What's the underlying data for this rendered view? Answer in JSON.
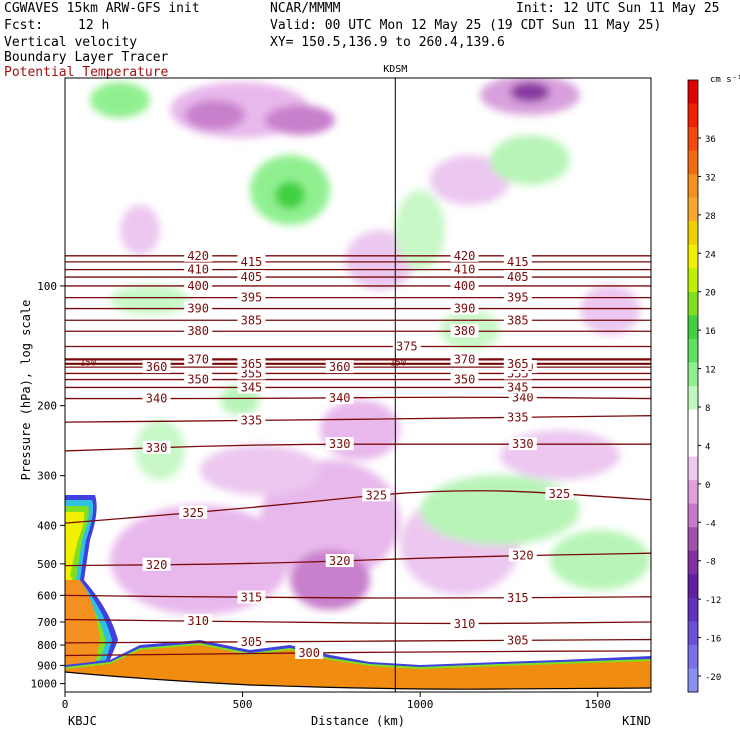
{
  "header": {
    "model": "CGWAVES 15km ARW-GFS init",
    "org": "NCAR/MMMM",
    "init": "Init: 12 UTC Sun 11 May 25",
    "fcst_label": "Fcst:",
    "fcst_value": "12 h",
    "valid": "Valid: 00 UTC Mon 12 May 25 (19 CDT Sun 11 May 25)",
    "field1": "Vertical velocity",
    "xy": "XY= 150.5,136.9 to 260.4,139.6",
    "field2": "Boundary Layer Tracer",
    "field3": "Potential Temperature"
  },
  "chart_data": {
    "type": "cross-section",
    "ylabel": "Pressure (hPa), log scale",
    "xlabel": "Distance (km)",
    "xlim": [
      0,
      1650
    ],
    "ylim": [
      1050,
      30
    ],
    "x_ticks": [
      0,
      500,
      1000,
      1500
    ],
    "y_ticks": [
      100,
      200,
      300,
      400,
      500,
      600,
      700,
      800,
      900,
      1000
    ],
    "left_station": "KBJC",
    "right_station": "KIND",
    "marker_station": "KDSM",
    "marker_distance_km": 930,
    "colorbar": {
      "unit": "cm s⁻¹",
      "tick_labels": [
        "36",
        "32",
        "28",
        "24",
        "20",
        "16",
        "12",
        "8",
        "4",
        "0",
        "-4",
        "-8",
        "-12",
        "-16",
        "-20"
      ],
      "colors": [
        "#e00000",
        "#f02000",
        "#f04a10",
        "#f06a10",
        "#f49020",
        "#f8a830",
        "#f0d000",
        "#f0f000",
        "#c0f000",
        "#80e020",
        "#40d040",
        "#60e060",
        "#90f090",
        "#c0f8c0",
        "#ffffff",
        "#ffffff",
        "#f0c8f0",
        "#e0a0e0",
        "#c878c8",
        "#a050a8",
        "#8030a0",
        "#6020a0",
        "#6030c0",
        "#6a50d8",
        "#7a70e8",
        "#8a90f0"
      ]
    },
    "theta_contours": [
      {
        "value": 300,
        "labels": [
          "300"
        ],
        "p": [
          850,
          840,
          830,
          828
        ]
      },
      {
        "value": 305,
        "labels": [
          "305",
          "305"
        ],
        "p": [
          790,
          785,
          780,
          775
        ]
      },
      {
        "value": 310,
        "labels": [
          "310",
          "310"
        ],
        "p": [
          690,
          700,
          708,
          700
        ]
      },
      {
        "value": 315,
        "labels": [
          "315",
          "315"
        ],
        "p": [
          600,
          608,
          610,
          605
        ]
      },
      {
        "value": 320,
        "labels": [
          "320",
          "320",
          "320"
        ],
        "p": [
          505,
          500,
          480,
          470
        ]
      },
      {
        "value": 325,
        "labels": [
          "325",
          "325",
          "325"
        ],
        "p": [
          395,
          360,
          320,
          345
        ]
      },
      {
        "value": 330,
        "labels": [
          "330",
          "330",
          "330"
        ],
        "p": [
          260,
          250,
          250,
          250
        ]
      },
      {
        "value": 335,
        "labels": [
          "335",
          "335"
        ],
        "p": [
          220,
          218,
          215,
          212
        ]
      },
      {
        "value": 340,
        "labels": [
          "340",
          "340",
          "340"
        ],
        "p": [
          192,
          192,
          190,
          192
        ]
      },
      {
        "value": 345,
        "labels": [
          "345",
          "345"
        ],
        "p": [
          180,
          180,
          180,
          180
        ]
      },
      {
        "value": 350,
        "labels": [
          "350",
          "350"
        ],
        "p": [
          172,
          172,
          172,
          172
        ]
      },
      {
        "value": 355,
        "labels": [
          "355",
          "355"
        ],
        "p": [
          166,
          166,
          166,
          166
        ]
      },
      {
        "value": 360,
        "labels": [
          "360",
          "360",
          "360"
        ],
        "p": [
          160,
          160,
          160,
          160
        ]
      },
      {
        "value": 365,
        "labels": [
          "365",
          "365"
        ],
        "p": [
          157,
          157,
          157,
          157
        ]
      },
      {
        "value": 370,
        "labels": [
          "370",
          "370"
        ],
        "p": [
          153,
          153,
          153,
          153
        ]
      },
      {
        "value": 375,
        "labels": [
          "375"
        ],
        "p": [
          142,
          142,
          142,
          142
        ]
      },
      {
        "value": 380,
        "labels": [
          "380",
          "380"
        ],
        "p": [
          130,
          130,
          130,
          130
        ]
      },
      {
        "value": 385,
        "labels": [
          "385",
          "385"
        ],
        "p": [
          122,
          122,
          122,
          122
        ]
      },
      {
        "value": 390,
        "labels": [
          "390",
          "390"
        ],
        "p": [
          114,
          114,
          114,
          114
        ]
      },
      {
        "value": 395,
        "labels": [
          "395",
          "395"
        ],
        "p": [
          107,
          107,
          107,
          107
        ]
      },
      {
        "value": 400,
        "labels": [
          "400",
          "400"
        ],
        "p": [
          100,
          100,
          100,
          100
        ]
      },
      {
        "value": 405,
        "labels": [
          "405",
          "405"
        ],
        "p": [
          95,
          95,
          95,
          95
        ]
      },
      {
        "value": 410,
        "labels": [
          "410",
          "410"
        ],
        "p": [
          91,
          91,
          91,
          91
        ]
      },
      {
        "value": 415,
        "labels": [
          "415",
          "415"
        ],
        "p": [
          87,
          87,
          87,
          87
        ]
      },
      {
        "value": 420,
        "labels": [
          "420",
          "420"
        ],
        "p": [
          84,
          84,
          84,
          84
        ]
      }
    ],
    "mid_label": "150"
  }
}
